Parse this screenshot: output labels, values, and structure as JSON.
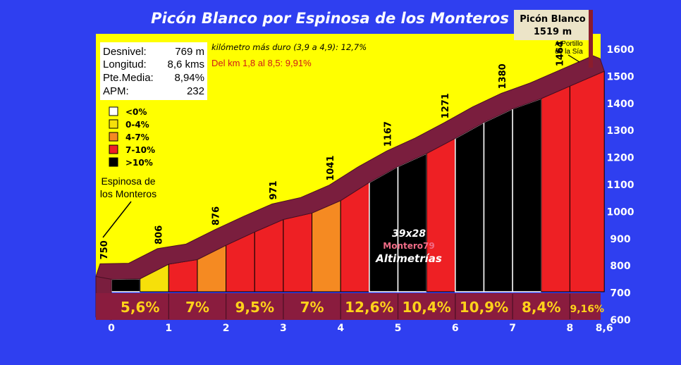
{
  "title": "Picón Blanco por Espinosa de los Monteros",
  "summit": {
    "name": "Picón Blanco",
    "elevation": "1519 m",
    "note_line1": "A Portillo",
    "note_line2": "de la Sía"
  },
  "start_label": {
    "line1": "Espinosa de",
    "line2": "los Monteros"
  },
  "stats": [
    {
      "label": "Desnivel:",
      "value": "769 m"
    },
    {
      "label": "Longitud:",
      "value": "8,6 kms"
    },
    {
      "label": "Pte.Media:",
      "value": "8,94%"
    },
    {
      "label": "APM:",
      "value": "232"
    }
  ],
  "notes": {
    "hardest_km": "kilómetro más duro (3,9 a 4,9):  12,7%",
    "range": "Del km 1,8 al 8,5: 9,91%"
  },
  "legend": [
    {
      "label": "<0%",
      "color": "#ffffff"
    },
    {
      "label": "0-4%",
      "color": "#f6e00a"
    },
    {
      "label": "4-7%",
      "color": "#f58a22"
    },
    {
      "label": "7-10%",
      "color": "#ee2024"
    },
    {
      "label": ">10%",
      "color": "#000000"
    }
  ],
  "watermark": {
    "line1": "39x28",
    "line2": "Montero79",
    "line3": "Altimetrías"
  },
  "colors": {
    "background": "#2f3ff0",
    "plot_background": "#ffff00",
    "band": "#7a1e3e",
    "axis_text": "#ffffff",
    "gradient_text": "#ffd21a"
  },
  "chart_data": {
    "type": "area",
    "title": "Picón Blanco por Espinosa de los Monteros",
    "xlabel": "",
    "ylabel": "",
    "xlim": [
      0,
      8.6
    ],
    "ylim": [
      600,
      1650
    ],
    "x_ticks": [
      "0",
      "1",
      "2",
      "3",
      "4",
      "5",
      "6",
      "7",
      "8",
      "8,6"
    ],
    "x_tick_values": [
      0,
      1,
      2,
      3,
      4,
      5,
      6,
      7,
      8,
      8.6
    ],
    "y_ticks": [
      600,
      700,
      800,
      900,
      1000,
      1100,
      1200,
      1300,
      1400,
      1500,
      1600
    ],
    "elevation_labels": [
      {
        "km": 0,
        "label": "750"
      },
      {
        "km": 1,
        "label": "806"
      },
      {
        "km": 2,
        "label": "876"
      },
      {
        "km": 3,
        "label": "971"
      },
      {
        "km": 4,
        "label": "1041"
      },
      {
        "km": 5,
        "label": "1167"
      },
      {
        "km": 6,
        "label": "1271"
      },
      {
        "km": 7,
        "label": "1380"
      },
      {
        "km": 8,
        "label": "1464"
      }
    ],
    "profile": [
      {
        "km": 0,
        "elev": 750
      },
      {
        "km": 0.5,
        "elev": 752
      },
      {
        "km": 1,
        "elev": 806
      },
      {
        "km": 1.5,
        "elev": 823
      },
      {
        "km": 2,
        "elev": 876
      },
      {
        "km": 2.5,
        "elev": 925
      },
      {
        "km": 3,
        "elev": 971
      },
      {
        "km": 3.5,
        "elev": 995
      },
      {
        "km": 4,
        "elev": 1041
      },
      {
        "km": 4.5,
        "elev": 1108
      },
      {
        "km": 5,
        "elev": 1167
      },
      {
        "km": 5.5,
        "elev": 1215
      },
      {
        "km": 6,
        "elev": 1271
      },
      {
        "km": 6.5,
        "elev": 1330
      },
      {
        "km": 7,
        "elev": 1380
      },
      {
        "km": 7.5,
        "elev": 1418
      },
      {
        "km": 8,
        "elev": 1464
      },
      {
        "km": 8.6,
        "elev": 1519
      }
    ],
    "segment_classes": [
      ">10%",
      "0-4%",
      "7-10%",
      "4-7%",
      "7-10%",
      "7-10%",
      "7-10%",
      "4-7%",
      "7-10%",
      ">10%",
      ">10%",
      "7-10%",
      ">10%",
      ">10%",
      ">10%",
      "7-10%",
      "7-10%",
      "7-10%"
    ],
    "km_gradients": [
      "5,6%",
      "7%",
      "9,5%",
      "7%",
      "12,6%",
      "10,4%",
      "10,9%",
      "8,4%",
      "9,16%"
    ]
  }
}
